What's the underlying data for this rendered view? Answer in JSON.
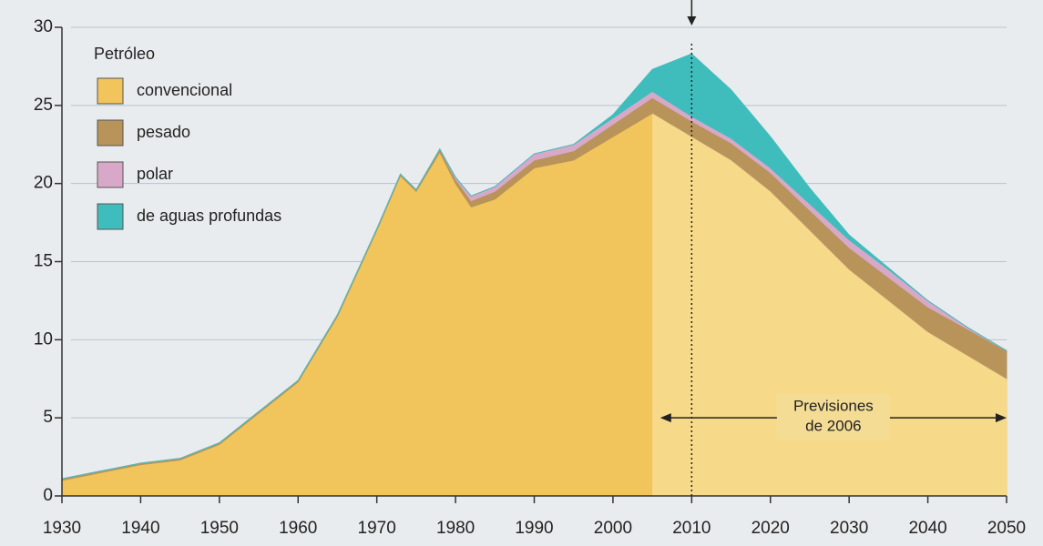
{
  "chart_data": {
    "type": "stacked_area",
    "legend_title": "Petróleo",
    "x": [
      1930,
      1935,
      1940,
      1945,
      1950,
      1955,
      1960,
      1965,
      1970,
      1973,
      1975,
      1978,
      1980,
      1982,
      1985,
      1990,
      1995,
      2000,
      2005,
      2010,
      2015,
      2020,
      2025,
      2030,
      2035,
      2040,
      2045,
      2050
    ],
    "series": [
      {
        "name": "convencional",
        "color": "#f1c55c",
        "values": [
          1.0,
          1.5,
          2.0,
          2.3,
          3.3,
          5.3,
          7.3,
          11.5,
          17.0,
          20.5,
          19.5,
          22.0,
          20.0,
          18.5,
          19.0,
          21.0,
          21.5,
          23.0,
          24.5,
          23.0,
          21.5,
          19.5,
          17.0,
          14.5,
          12.5,
          10.5,
          9.0,
          7.5
        ]
      },
      {
        "name": "pesado",
        "color": "#b8945a",
        "values": [
          0.1,
          0.1,
          0.1,
          0.1,
          0.1,
          0.1,
          0.1,
          0.1,
          0.1,
          0.1,
          0.1,
          0.2,
          0.3,
          0.4,
          0.5,
          0.5,
          0.6,
          0.8,
          1.0,
          1.0,
          1.1,
          1.2,
          1.3,
          1.4,
          1.5,
          1.6,
          1.7,
          1.8
        ]
      },
      {
        "name": "polar",
        "color": "#d8a8c8",
        "values": [
          0,
          0,
          0,
          0,
          0,
          0,
          0,
          0,
          0,
          0,
          0,
          0,
          0.1,
          0.3,
          0.3,
          0.4,
          0.4,
          0.4,
          0.4,
          0.3,
          0.3,
          0.3,
          0.4,
          0.5,
          0.5,
          0.4,
          0.1,
          0
        ]
      },
      {
        "name": "de aguas profundas",
        "color": "#3fbdbd",
        "values": [
          0,
          0,
          0,
          0,
          0,
          0,
          0,
          0,
          0,
          0,
          0,
          0,
          0,
          0,
          0,
          0,
          0,
          0.2,
          1.4,
          4.0,
          3.1,
          2.0,
          1.0,
          0.3,
          0.1,
          0,
          0,
          0
        ]
      }
    ],
    "xlim": [
      1930,
      2050
    ],
    "ylim": [
      0,
      30
    ],
    "xticks": [
      1930,
      1940,
      1950,
      1960,
      1970,
      1980,
      1990,
      2000,
      2010,
      2020,
      2030,
      2040,
      2050
    ],
    "yticks": [
      0,
      5,
      10,
      15,
      20,
      25,
      30
    ],
    "grid": true,
    "forecast_from": 2005,
    "marker_x": 2010,
    "annotation": {
      "lines": [
        "Previsiones",
        "de 2006"
      ],
      "x_range": [
        2006,
        2050
      ],
      "y": 5
    }
  }
}
